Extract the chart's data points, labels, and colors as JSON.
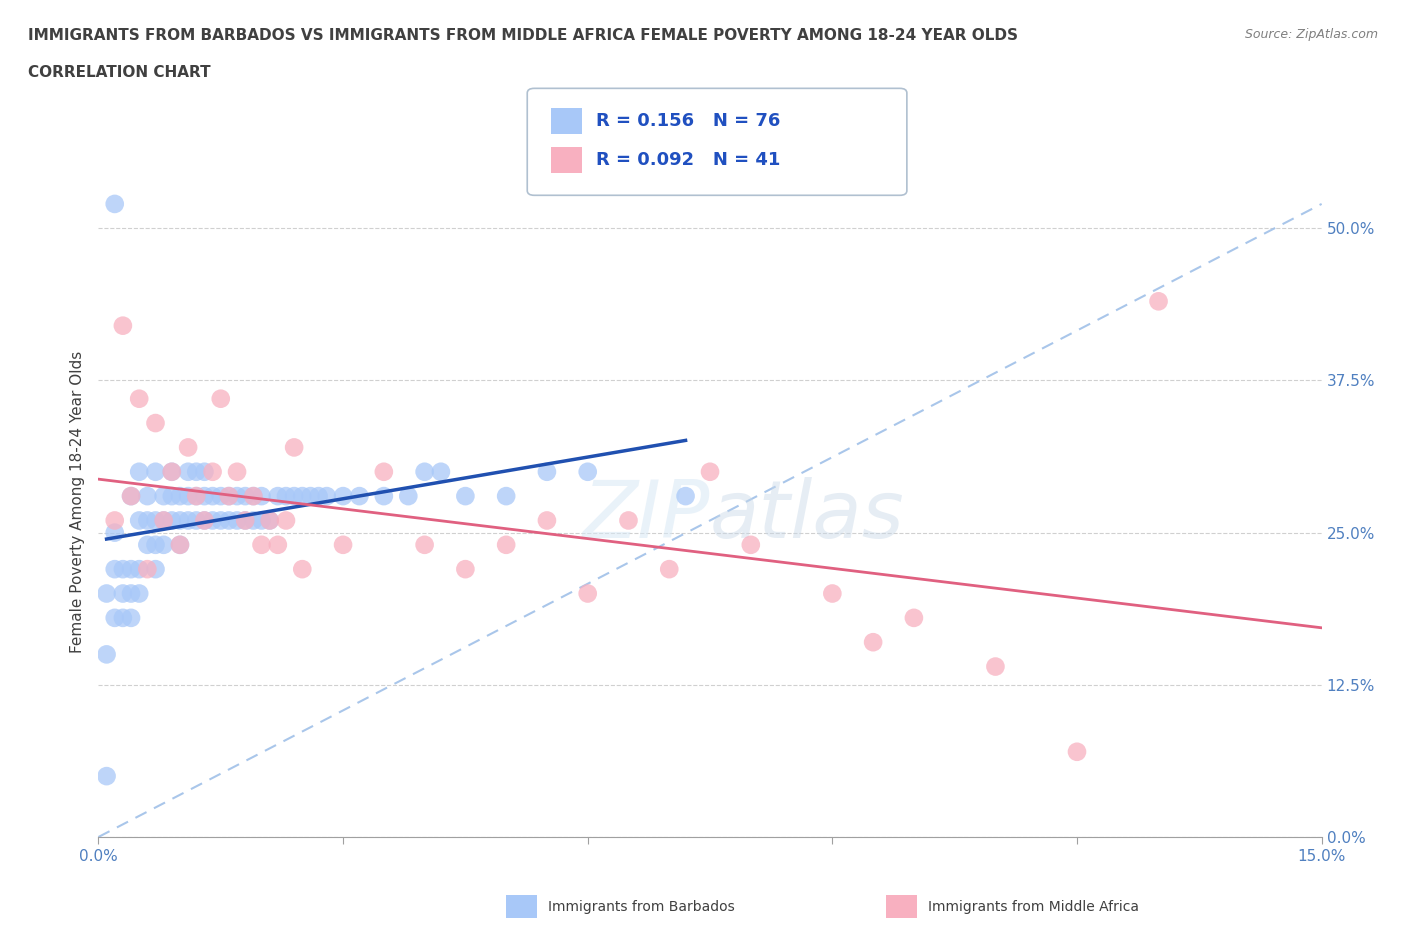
{
  "title_line1": "IMMIGRANTS FROM BARBADOS VS IMMIGRANTS FROM MIDDLE AFRICA FEMALE POVERTY AMONG 18-24 YEAR OLDS",
  "title_line2": "CORRELATION CHART",
  "source_text": "Source: ZipAtlas.com",
  "ylabel": "Female Poverty Among 18-24 Year Olds",
  "xlim": [
    0.0,
    0.15
  ],
  "ylim": [
    0.0,
    0.55
  ],
  "ytick_positions": [
    0.0,
    0.125,
    0.25,
    0.375,
    0.5
  ],
  "yticklabels_right": [
    "0.0%",
    "12.5%",
    "25.0%",
    "37.5%",
    "50.0%"
  ],
  "R_barbados": 0.156,
  "N_barbados": 76,
  "R_middle_africa": 0.092,
  "N_middle_africa": 41,
  "barbados_color": "#a8c8f8",
  "middle_africa_color": "#f8b0c0",
  "trend_barbados_color": "#2050b0",
  "trend_middle_africa_color": "#e06080",
  "dashed_color": "#a8c8f8",
  "watermark": "ZIPatlas",
  "legend_label_barbados": "Immigrants from Barbados",
  "legend_label_middle_africa": "Immigrants from Middle Africa",
  "barbados_x": [
    0.001,
    0.001,
    0.002,
    0.002,
    0.002,
    0.003,
    0.003,
    0.003,
    0.004,
    0.004,
    0.004,
    0.004,
    0.005,
    0.005,
    0.005,
    0.005,
    0.006,
    0.006,
    0.006,
    0.007,
    0.007,
    0.007,
    0.007,
    0.008,
    0.008,
    0.008,
    0.009,
    0.009,
    0.009,
    0.01,
    0.01,
    0.01,
    0.011,
    0.011,
    0.011,
    0.012,
    0.012,
    0.012,
    0.013,
    0.013,
    0.013,
    0.014,
    0.014,
    0.015,
    0.015,
    0.016,
    0.016,
    0.017,
    0.017,
    0.018,
    0.018,
    0.019,
    0.019,
    0.02,
    0.02,
    0.021,
    0.022,
    0.023,
    0.024,
    0.025,
    0.026,
    0.027,
    0.028,
    0.03,
    0.032,
    0.035,
    0.038,
    0.04,
    0.042,
    0.045,
    0.05,
    0.055,
    0.06,
    0.002,
    0.001,
    0.072
  ],
  "barbados_y": [
    0.2,
    0.15,
    0.22,
    0.18,
    0.25,
    0.2,
    0.22,
    0.18,
    0.28,
    0.22,
    0.2,
    0.18,
    0.3,
    0.26,
    0.22,
    0.2,
    0.28,
    0.26,
    0.24,
    0.3,
    0.26,
    0.24,
    0.22,
    0.28,
    0.26,
    0.24,
    0.3,
    0.28,
    0.26,
    0.28,
    0.26,
    0.24,
    0.3,
    0.28,
    0.26,
    0.3,
    0.28,
    0.26,
    0.26,
    0.28,
    0.3,
    0.26,
    0.28,
    0.26,
    0.28,
    0.26,
    0.28,
    0.26,
    0.28,
    0.26,
    0.28,
    0.26,
    0.28,
    0.26,
    0.28,
    0.26,
    0.28,
    0.28,
    0.28,
    0.28,
    0.28,
    0.28,
    0.28,
    0.28,
    0.28,
    0.28,
    0.28,
    0.3,
    0.3,
    0.28,
    0.28,
    0.3,
    0.3,
    0.52,
    0.05,
    0.28
  ],
  "middle_africa_x": [
    0.002,
    0.003,
    0.004,
    0.005,
    0.006,
    0.007,
    0.008,
    0.009,
    0.01,
    0.011,
    0.012,
    0.013,
    0.014,
    0.015,
    0.016,
    0.017,
    0.018,
    0.019,
    0.02,
    0.021,
    0.022,
    0.023,
    0.024,
    0.025,
    0.03,
    0.035,
    0.04,
    0.045,
    0.05,
    0.055,
    0.06,
    0.065,
    0.07,
    0.075,
    0.08,
    0.09,
    0.095,
    0.1,
    0.11,
    0.12,
    0.13
  ],
  "middle_africa_y": [
    0.26,
    0.42,
    0.28,
    0.36,
    0.22,
    0.34,
    0.26,
    0.3,
    0.24,
    0.32,
    0.28,
    0.26,
    0.3,
    0.36,
    0.28,
    0.3,
    0.26,
    0.28,
    0.24,
    0.26,
    0.24,
    0.26,
    0.32,
    0.22,
    0.24,
    0.3,
    0.24,
    0.22,
    0.24,
    0.26,
    0.2,
    0.26,
    0.22,
    0.3,
    0.24,
    0.2,
    0.16,
    0.18,
    0.14,
    0.07,
    0.44
  ]
}
